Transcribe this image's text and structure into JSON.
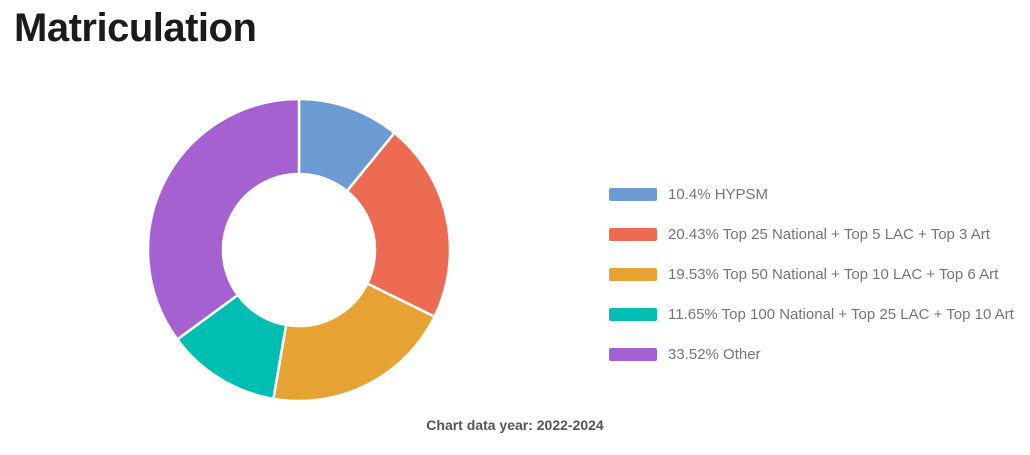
{
  "header": {
    "title": "Matriculation"
  },
  "chart_data": {
    "type": "pie",
    "variant": "donut",
    "title": "Matriculation",
    "legend_position": "right",
    "start_angle_deg": 0,
    "clockwise": true,
    "normalized_to_total": true,
    "slices": [
      {
        "value": 10.4,
        "label": "HYPSM",
        "color": "#6b9bd2"
      },
      {
        "value": 20.43,
        "label": "Top 25 National + Top 5 LAC + Top 3 Art",
        "color": "#ed6b52"
      },
      {
        "value": 19.53,
        "label": "Top 50 National + Top 10 LAC + Top 6 Art",
        "color": "#e6a334"
      },
      {
        "value": 11.65,
        "label": "Top 100 National + Top 25 LAC + Top 10 Art",
        "color": "#00bfb2"
      },
      {
        "value": 33.52,
        "label": "Other",
        "color": "#a561d1"
      }
    ],
    "colors": {
      "separator": "#ffffff",
      "legend_text": "#757575",
      "title_text": "#1b1b1b",
      "caption_text": "#555555"
    }
  },
  "caption": {
    "text": "Chart data year: 2022-2024"
  }
}
